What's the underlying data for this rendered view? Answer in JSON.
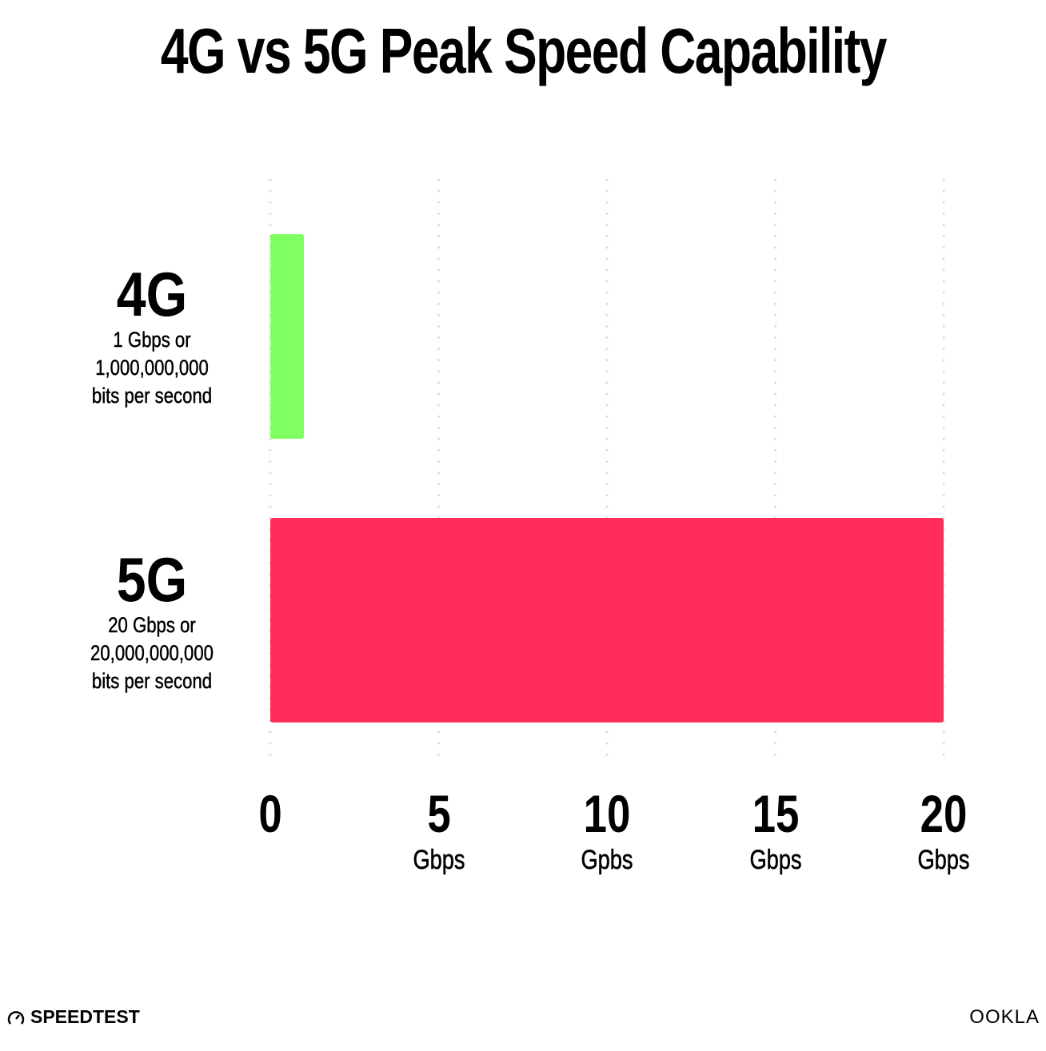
{
  "chart_data": {
    "type": "bar",
    "orientation": "horizontal",
    "title": "4G vs 5G Peak Speed Capability",
    "categories": [
      {
        "label": "4G",
        "sublines": [
          "1 Gbps or",
          "1,000,000,000",
          "bits per second"
        ]
      },
      {
        "label": "5G",
        "sublines": [
          "20 Gbps or",
          "20,000,000,000",
          "bits per second"
        ]
      }
    ],
    "values": [
      1,
      20
    ],
    "unit": "Gbps",
    "colors": [
      "#80ff62",
      "#ff2d5a"
    ],
    "xlim": [
      0,
      20
    ],
    "ticks": [
      {
        "value": 0,
        "num": "0",
        "unit": ""
      },
      {
        "value": 5,
        "num": "5",
        "unit": "Gbps"
      },
      {
        "value": 10,
        "num": "10",
        "unit": "Gpbs"
      },
      {
        "value": 15,
        "num": "15",
        "unit": "Gbps"
      },
      {
        "value": 20,
        "num": "20",
        "unit": "Gbps"
      }
    ],
    "grid": "vertical dotted",
    "gridColor": "#dcdce6"
  },
  "branding": {
    "left": "SPEEDTEST",
    "right": "OOKLA"
  }
}
